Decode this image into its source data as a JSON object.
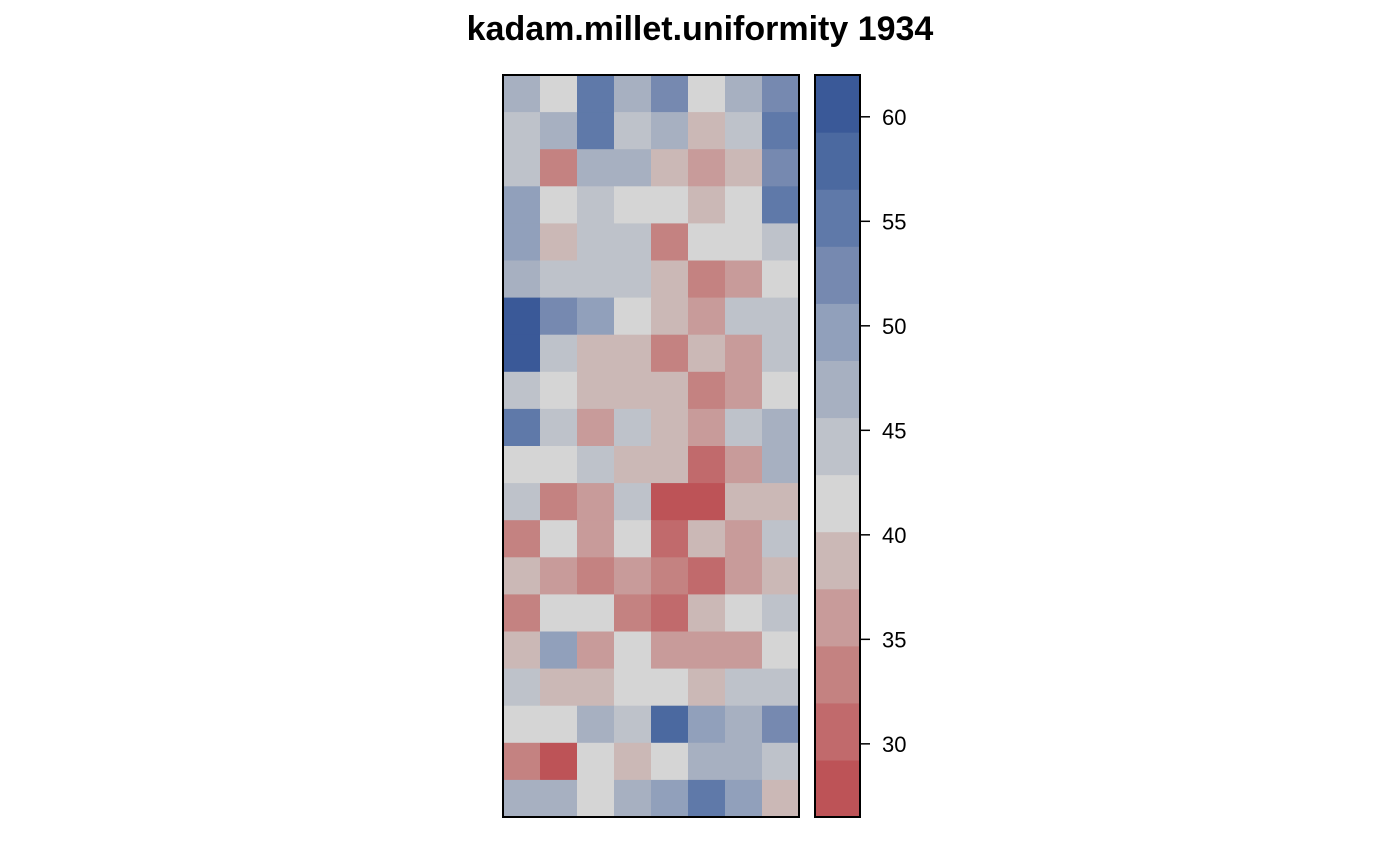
{
  "chart_data": {
    "type": "heatmap",
    "title": "kadam.millet.uniformity 1934",
    "xlabel": "",
    "ylabel": "",
    "n_cols": 8,
    "n_rows": 20,
    "values": [
      [
        47,
        42,
        55,
        47,
        53,
        42,
        47,
        53
      ],
      [
        45,
        47,
        55,
        45,
        47,
        39,
        45,
        55
      ],
      [
        45,
        33,
        47,
        47,
        39,
        37,
        39,
        53
      ],
      [
        49,
        42,
        45,
        42,
        42,
        39,
        42,
        55
      ],
      [
        49,
        39,
        45,
        45,
        33,
        42,
        42,
        45
      ],
      [
        47,
        45,
        45,
        45,
        39,
        33,
        37,
        42
      ],
      [
        61,
        53,
        49,
        42,
        39,
        37,
        45,
        45
      ],
      [
        61,
        45,
        39,
        39,
        33,
        39,
        37,
        45
      ],
      [
        45,
        42,
        39,
        39,
        39,
        33,
        37,
        42
      ],
      [
        55,
        45,
        37,
        45,
        39,
        37,
        45,
        47
      ],
      [
        42,
        42,
        45,
        39,
        39,
        31,
        35,
        47
      ],
      [
        45,
        33,
        37,
        45,
        29,
        29,
        39,
        39
      ],
      [
        33,
        42,
        37,
        42,
        31,
        39,
        35,
        45
      ],
      [
        39,
        35,
        33,
        35,
        33,
        31,
        35,
        39
      ],
      [
        33,
        42,
        42,
        33,
        31,
        39,
        42,
        45
      ],
      [
        39,
        49,
        37,
        42,
        37,
        37,
        37,
        42
      ],
      [
        45,
        39,
        39,
        42,
        42,
        39,
        45,
        45
      ],
      [
        42,
        42,
        47,
        45,
        57,
        49,
        47,
        53
      ],
      [
        33,
        29,
        42,
        39,
        42,
        47,
        47,
        45
      ],
      [
        47,
        47,
        42,
        47,
        49,
        55,
        49,
        39
      ]
    ],
    "colorbar": {
      "min": 26.5,
      "max": 62,
      "ticks": [
        30,
        35,
        40,
        45,
        50,
        55,
        60
      ],
      "tick_labels": [
        "30",
        "35",
        "40",
        "45",
        "50",
        "55",
        "60"
      ],
      "colors": [
        "#bd5357",
        "#c16a6c",
        "#c48281",
        "#c89b9a",
        "#cbb8b6",
        "#d5d5d5",
        "#bec2ca",
        "#a7b0c1",
        "#91a0bb",
        "#7689b0",
        "#5f79a9",
        "#4b69a0",
        "#3a5998"
      ]
    }
  }
}
